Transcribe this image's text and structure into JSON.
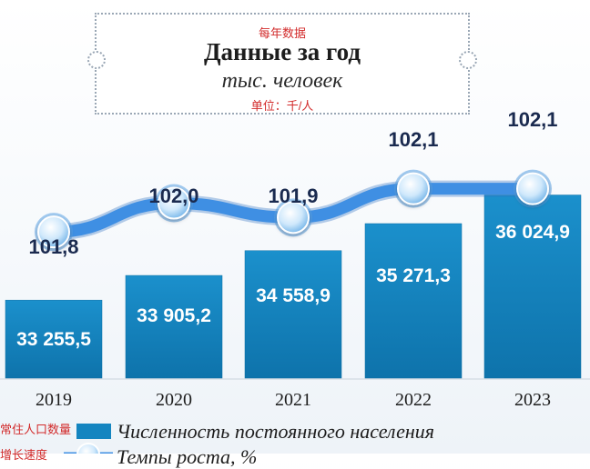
{
  "header": {
    "title_cn": "每年数据",
    "title_ru": "Данные за год",
    "unit_ru": "тыс. человек",
    "unit_cn": "单位：千/人"
  },
  "colors": {
    "bar": "#1485c0",
    "bar_dark": "#0b6ea3",
    "line": "#3f8fe3",
    "marker_fill": "#bfe1fb",
    "growth_label": "#1a2a4f"
  },
  "legend": {
    "items": [
      {
        "cn": "常住人口数量",
        "ru": "Численность постоянного населения",
        "symbol": "bar"
      },
      {
        "cn": "增长速度",
        "ru": "Темпы роста, %",
        "symbol": "line-marker"
      }
    ]
  },
  "chart_data": {
    "type": "bar+line",
    "categories": [
      "2019",
      "2020",
      "2021",
      "2022",
      "2023"
    ],
    "series": [
      {
        "name": "Численность постоянного населения",
        "kind": "bar",
        "values": [
          33255.5,
          33905.2,
          34558.9,
          35271.3,
          36024.9
        ],
        "labels": [
          "33 255,5",
          "33 905,2",
          "34 558,9",
          "35 271,3",
          "36 024,9"
        ]
      },
      {
        "name": "Темпы роста, %",
        "kind": "line",
        "values": [
          101.8,
          102.0,
          101.9,
          102.1,
          102.1
        ],
        "labels": [
          "101,8",
          "102,0",
          "101,9",
          "102,1",
          "102,1"
        ]
      }
    ],
    "bar_axis": {
      "baseline": 31200,
      "max": 36900
    },
    "line_axis": {
      "min": 101.0,
      "max": 102.35
    },
    "grid": false
  }
}
